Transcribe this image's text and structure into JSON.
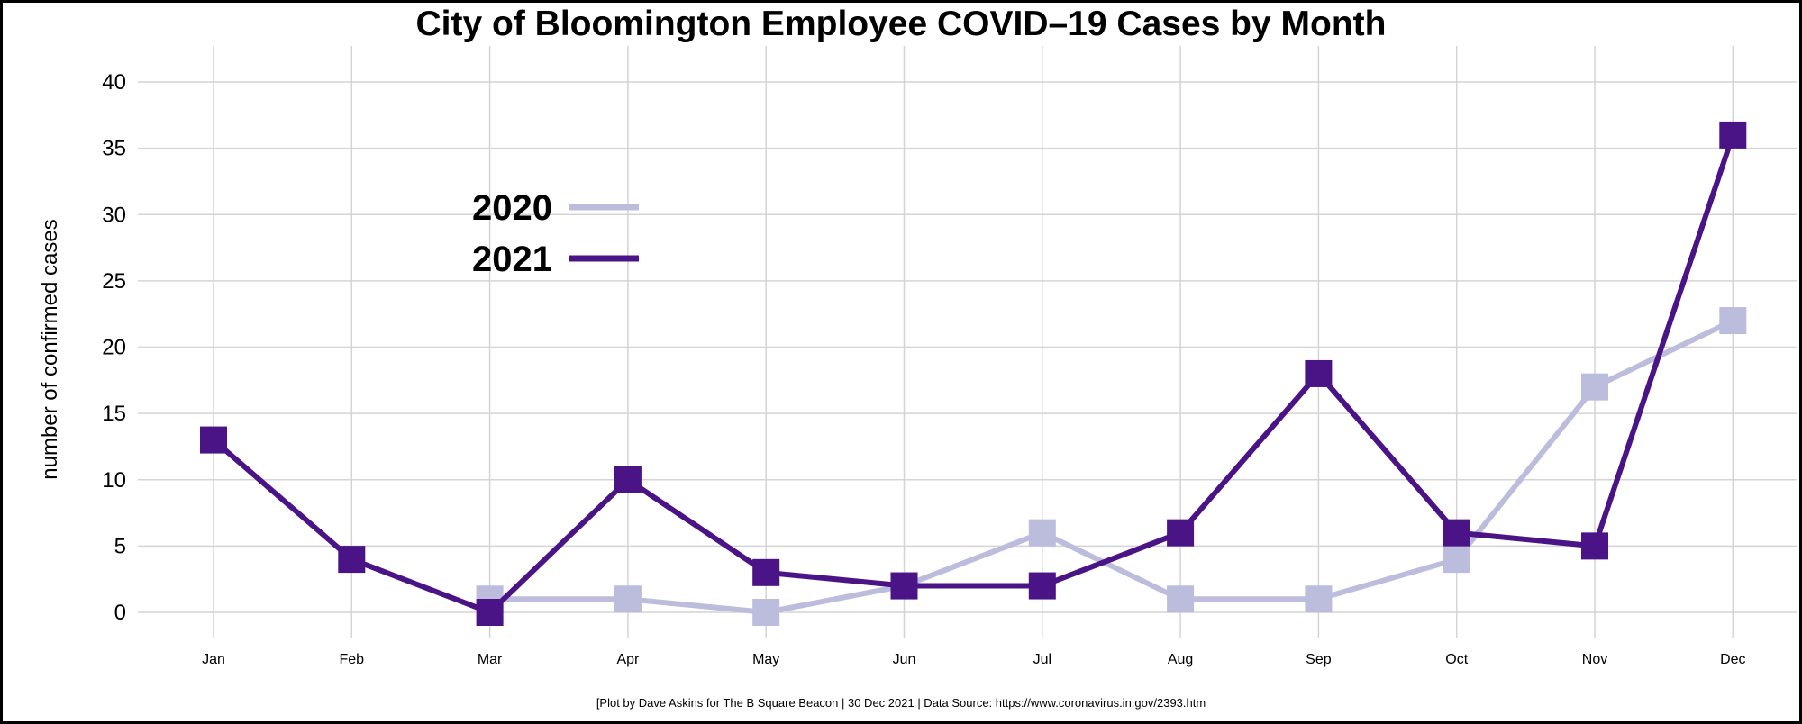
{
  "chart_data": {
    "type": "line",
    "title": "City of Bloomington Employee COVID–19 Cases by Month",
    "xlabel": "",
    "ylabel": "number of confirmed cases",
    "categories": [
      "Jan",
      "Feb",
      "Mar",
      "Apr",
      "May",
      "Jun",
      "Jul",
      "Aug",
      "Sep",
      "Oct",
      "Nov",
      "Dec"
    ],
    "ylim": [
      0,
      40
    ],
    "yticks": [
      0,
      5,
      10,
      15,
      20,
      25,
      30,
      35,
      40
    ],
    "grid": true,
    "legend_position": "upper-left",
    "marker": "square",
    "series": [
      {
        "name": "2020",
        "color": "#bcbcdc",
        "values": [
          null,
          null,
          1,
          1,
          0,
          2,
          6,
          1,
          1,
          4,
          17,
          22
        ]
      },
      {
        "name": "2021",
        "color": "#4a1486",
        "values": [
          13,
          4,
          0,
          10,
          3,
          2,
          2,
          6,
          18,
          6,
          5,
          36
        ]
      }
    ],
    "caption": "[Plot by Dave Askins for The B Square Beacon | 30 Dec 2021 | Data Source: https://www.coronavirus.in.gov/2393.htm"
  }
}
